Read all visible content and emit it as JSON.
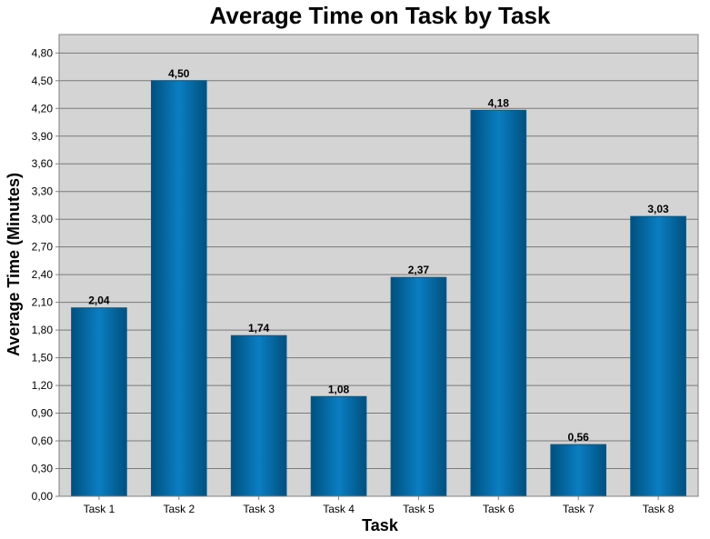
{
  "chart_data": {
    "type": "bar",
    "title": "Average Time on Task by Task",
    "xlabel": "Task",
    "ylabel": "Average Time (Minutes)",
    "categories": [
      "Task 1",
      "Task 2",
      "Task 3",
      "Task 4",
      "Task 5",
      "Task 6",
      "Task 7",
      "Task 8"
    ],
    "values": [
      2.04,
      4.5,
      1.74,
      1.08,
      2.37,
      4.18,
      0.56,
      3.03
    ],
    "value_labels": [
      "2,04",
      "4,50",
      "1,74",
      "1,08",
      "2,37",
      "4,18",
      "0,56",
      "3,03"
    ],
    "ylim": [
      0,
      5.0
    ],
    "yticks": [
      0,
      0.3,
      0.6,
      0.9,
      1.2,
      1.5,
      1.8,
      2.1,
      2.4,
      2.7,
      3.0,
      3.3,
      3.6,
      3.9,
      4.2,
      4.5,
      4.8
    ],
    "ytick_labels": [
      "0,00",
      "0,30",
      "0,60",
      "0,90",
      "1,20",
      "1,50",
      "1,80",
      "2,10",
      "2,40",
      "2,70",
      "3,00",
      "3,30",
      "3,60",
      "3,90",
      "4,20",
      "4,50",
      "4,80"
    ],
    "grid": true,
    "legend": "none",
    "colors": {
      "bar_edge": "#005a8c",
      "bar_mid": "#0a7ec2",
      "bar_dark": "#00507e",
      "plot_background": "#d4d4d4",
      "grid": "#7a7a7a"
    }
  }
}
